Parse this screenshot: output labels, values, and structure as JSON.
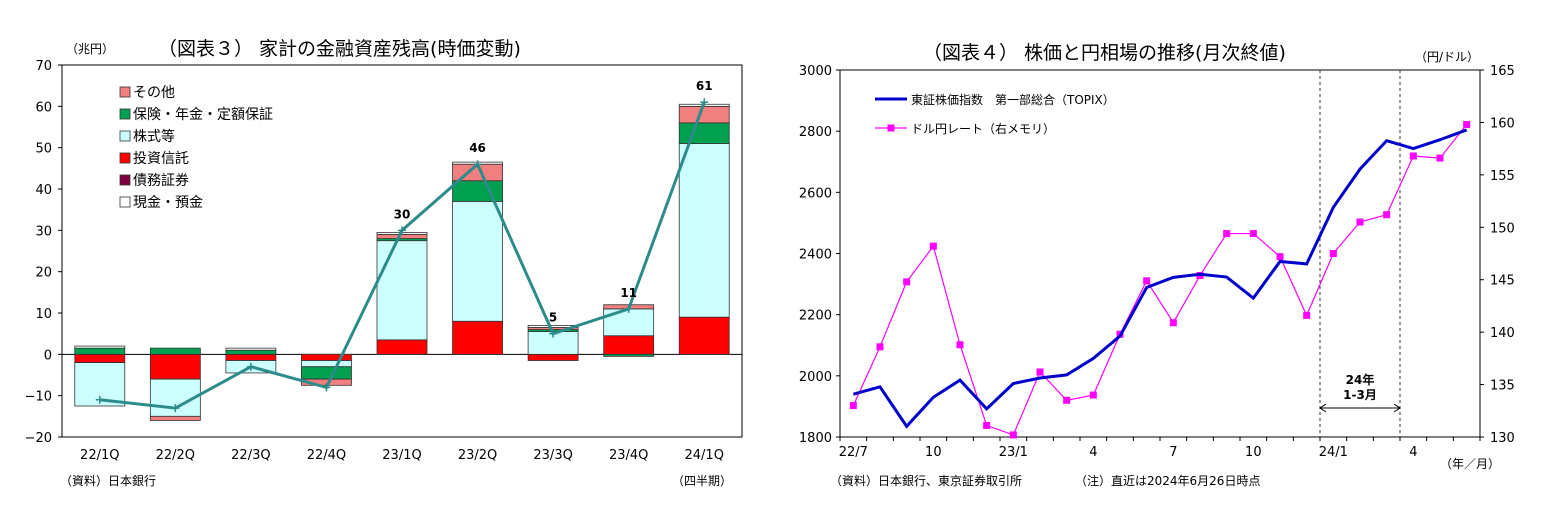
{
  "chart_data": [
    {
      "type": "bar",
      "title": "（図表３） 家計の金融資産残高(時価変動)",
      "ylabel": "（兆円）",
      "xlabel": "（四半期）",
      "source": "（資料）日本銀行",
      "ylim": [
        -20,
        70
      ],
      "yticks": [
        -20,
        -10,
        0,
        10,
        20,
        30,
        40,
        50,
        60,
        70
      ],
      "categories": [
        "22/1Q",
        "22/2Q",
        "22/3Q",
        "22/4Q",
        "23/1Q",
        "23/2Q",
        "23/3Q",
        "23/4Q",
        "24/1Q"
      ],
      "stack_order": [
        "投資信託",
        "株式等",
        "債務証券",
        "保険・年金・定額保証",
        "その他",
        "現金・預金"
      ],
      "series": [
        {
          "name": "その他",
          "color": "#f08080",
          "values": [
            0,
            -1,
            0,
            -1.5,
            1,
            4,
            0.5,
            1,
            4
          ]
        },
        {
          "name": "保険・年金・定額保証",
          "color": "#00a050",
          "values": [
            1.5,
            1.5,
            1,
            -3,
            0.5,
            5,
            0.5,
            -0.5,
            5
          ]
        },
        {
          "name": "株式等",
          "color": "#ccffff",
          "values": [
            -10.5,
            -9,
            -3,
            -1.5,
            24,
            29,
            5.5,
            6.5,
            42
          ]
        },
        {
          "name": "投資信託",
          "color": "#ff0000",
          "values": [
            -2,
            -6,
            -1.5,
            -1.5,
            3.5,
            8,
            -1.5,
            4.5,
            9
          ]
        },
        {
          "name": "債務証券",
          "color": "#800040",
          "values": [
            0,
            0,
            0,
            0,
            0,
            0,
            0,
            0,
            0
          ]
        },
        {
          "name": "現金・預金",
          "color": "#ffffff",
          "values": [
            0.5,
            0,
            0.5,
            0,
            0.5,
            0.5,
            0.5,
            0,
            0.5
          ]
        }
      ],
      "total": {
        "color": "#2e8b8b",
        "values": [
          -11,
          -13,
          -3,
          -8,
          30,
          46,
          5,
          11,
          61
        ]
      },
      "data_labels": [
        {
          "category": "23/1Q",
          "text": "30",
          "value": 30
        },
        {
          "category": "23/2Q",
          "text": "46",
          "value": 46
        },
        {
          "category": "23/3Q",
          "text": "5",
          "value": 5
        },
        {
          "category": "23/4Q",
          "text": "11",
          "value": 11
        },
        {
          "category": "24/1Q",
          "text": "61",
          "value": 61
        }
      ],
      "legend_position": "top-left",
      "grid": false
    },
    {
      "type": "line",
      "title": "（図表４） 株価と円相場の推移(月次終値)",
      "y2label": "（円/ドル）",
      "xlabel": "（年／月）",
      "source": "（資料）日本銀行、東京証券取引所",
      "note": "（注）直近は2024年6月26日時点",
      "ylim": [
        1800,
        3000
      ],
      "yticks": [
        1800,
        2000,
        2200,
        2400,
        2600,
        2800,
        3000
      ],
      "y2lim": [
        130,
        165
      ],
      "y2ticks": [
        130,
        135,
        140,
        145,
        150,
        155,
        160,
        165
      ],
      "x": [
        "22/7",
        "22/8",
        "22/9",
        "22/10",
        "22/11",
        "22/12",
        "23/1",
        "23/2",
        "23/3",
        "23/4",
        "23/5",
        "23/6",
        "23/7",
        "23/8",
        "23/9",
        "23/10",
        "23/11",
        "23/12",
        "24/1",
        "24/2",
        "24/3",
        "24/4",
        "24/5",
        "24/6"
      ],
      "xtick_labels": [
        {
          "index": 0,
          "text": "22/7"
        },
        {
          "index": 3,
          "text": "10"
        },
        {
          "index": 6,
          "text": "23/1"
        },
        {
          "index": 9,
          "text": "4"
        },
        {
          "index": 12,
          "text": "7"
        },
        {
          "index": 15,
          "text": "10"
        },
        {
          "index": 18,
          "text": "24/1"
        },
        {
          "index": 21,
          "text": "4"
        }
      ],
      "series": [
        {
          "name": "東証株価指数　第一部総合（TOPIX）",
          "axis": "left",
          "color": "#0000cc",
          "values": [
            1940,
            1964,
            1835,
            1930,
            1986,
            1892,
            1975,
            1993,
            2003,
            2057,
            2130,
            2289,
            2322,
            2332,
            2323,
            2254,
            2374,
            2366,
            2551,
            2676,
            2769,
            2743,
            2772,
            2804
          ]
        },
        {
          "name": "ドル円レート（右メモリ）",
          "axis": "right",
          "color": "#ff00ff",
          "values": [
            133.0,
            138.6,
            144.8,
            148.2,
            138.8,
            131.1,
            130.2,
            136.2,
            133.5,
            134.0,
            139.8,
            144.9,
            140.9,
            145.4,
            149.4,
            149.4,
            147.2,
            141.6,
            147.5,
            150.5,
            151.2,
            156.8,
            156.6,
            159.8
          ]
        }
      ],
      "vlines_after_index": [
        17,
        20
      ],
      "annotation": {
        "line1": "24年",
        "line2": "1-3月",
        "from_index": 17,
        "to_index": 20
      },
      "legend_position": "top-left",
      "grid": false
    }
  ]
}
